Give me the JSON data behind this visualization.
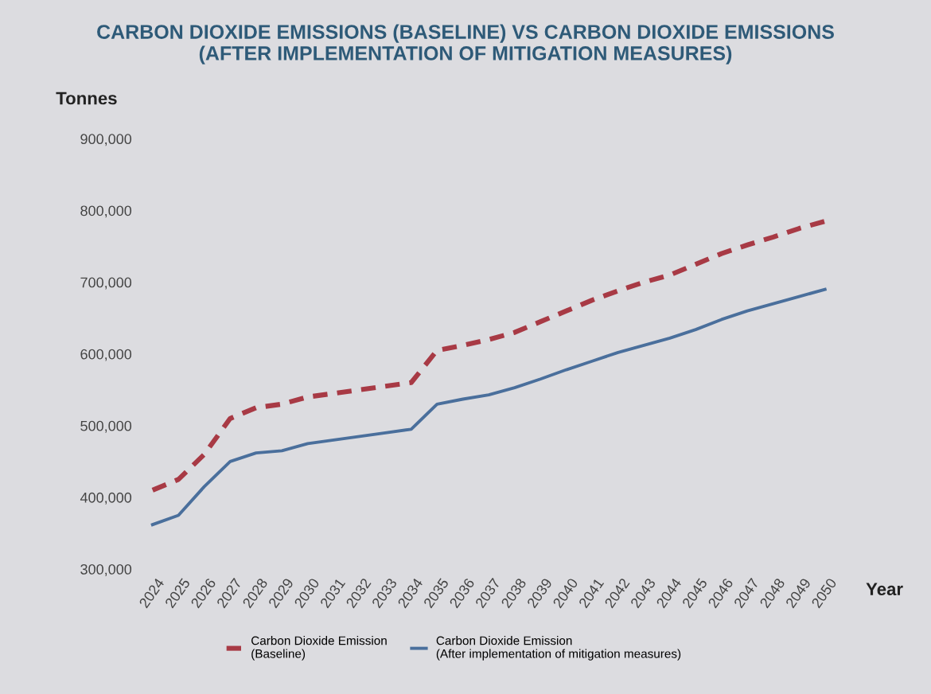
{
  "chart_data": {
    "type": "line",
    "title": "CARBON DIOXIDE EMISSIONS (BASELINE) VS CARBON DIOXIDE EMISSIONS\n(AFTER IMPLEMENTATION OF MITIGATION MEASURES)",
    "xlabel": "Year",
    "ylabel": "Tonnes",
    "categories": [
      "2024",
      "2025",
      "2026",
      "2027",
      "2028",
      "2029",
      "2030",
      "2031",
      "2032",
      "2033",
      "2034",
      "2035",
      "2036",
      "2037",
      "2038",
      "2039",
      "2040",
      "2041",
      "2042",
      "2043",
      "2044",
      "2045",
      "2046",
      "2047",
      "2048",
      "2049",
      "2050"
    ],
    "series": [
      {
        "name": "Carbon Dioxide Emission\n(Baseline)",
        "color": "#a83a45",
        "line_style": "dashed",
        "values": [
          410000,
          425000,
          460000,
          510000,
          525000,
          530000,
          540000,
          545000,
          550000,
          555000,
          560000,
          605000,
          612000,
          620000,
          630000,
          645000,
          660000,
          675000,
          688000,
          700000,
          710000,
          725000,
          740000,
          752000,
          763000,
          775000,
          785000
        ]
      },
      {
        "name": "Carbon Dioxide Emission\n(After implementation of mitigation measures)",
        "color": "#4a6f9c",
        "line_style": "solid",
        "values": [
          362000,
          375000,
          415000,
          450000,
          462000,
          465000,
          475000,
          480000,
          485000,
          490000,
          495000,
          530000,
          537000,
          543000,
          553000,
          565000,
          578000,
          590000,
          602000,
          612000,
          622000,
          634000,
          648000,
          660000,
          670000,
          680000,
          690000
        ]
      }
    ],
    "ylim": [
      300000,
      900000
    ],
    "yticks": [
      {
        "value": 300000,
        "label": "300,000"
      },
      {
        "value": 400000,
        "label": "400,000"
      },
      {
        "value": 500000,
        "label": "500,000"
      },
      {
        "value": 600000,
        "label": "600,000"
      },
      {
        "value": 700000,
        "label": "700,000"
      },
      {
        "value": 800000,
        "label": "800,000"
      },
      {
        "value": 900000,
        "label": "900,000"
      }
    ],
    "grid": false,
    "legend": "bottom"
  }
}
